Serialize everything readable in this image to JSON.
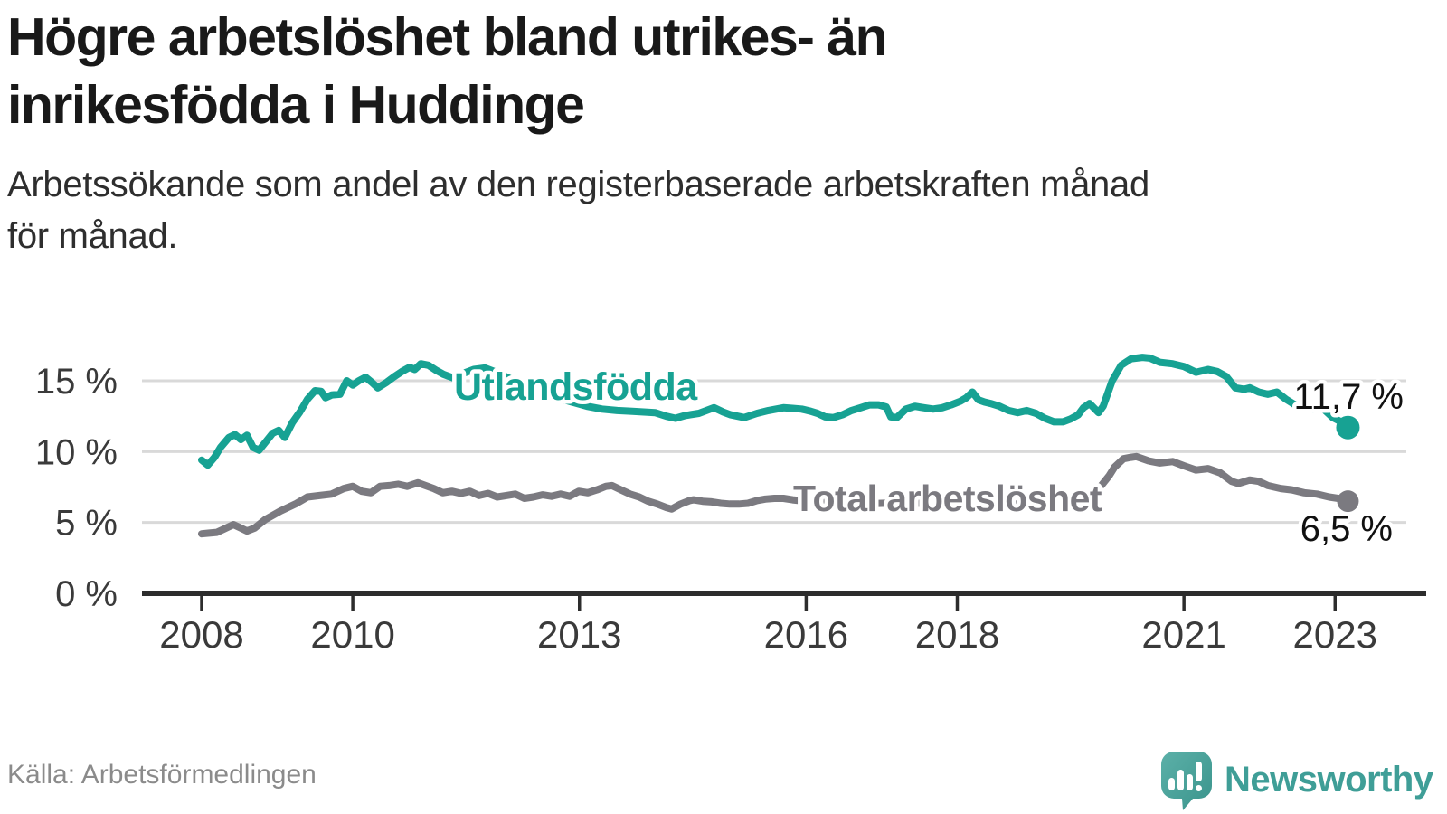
{
  "header": {
    "title_lines": [
      "Högre arbetslöshet bland utrikes- än",
      "inrikesfödda i Huddinge"
    ],
    "subtitle_lines": [
      "Arbetssökande som andel av den registerbaserade arbetskraften månad",
      "för månad."
    ]
  },
  "footer": {
    "source": "Källa: Arbetsförmedlingen",
    "brand": "Newsworthy"
  },
  "colors": {
    "accent_teal": "#17a293",
    "series_gray": "#7b7a80",
    "axis": "#2d2d2d",
    "grid": "#d9d9d9",
    "text": "#191919",
    "muted": "#8b8b8b",
    "brand_teal": "#3f9e97"
  },
  "chart_data": {
    "type": "line",
    "unit": "%",
    "grid": "horizontal",
    "x_axis": {
      "tick_years": [
        2008,
        2010,
        2013,
        2016,
        2018,
        2021,
        2023
      ],
      "tick_labels": [
        "2008",
        "2010",
        "2013",
        "2016",
        "2018",
        "2021",
        "2023"
      ],
      "range_years": [
        2008,
        2023.6
      ]
    },
    "y_axis": {
      "tick_values": [
        0,
        5,
        10,
        15
      ],
      "tick_labels": [
        "0 %",
        "5 %",
        "10 %",
        "15 %"
      ],
      "ylim": [
        0,
        17.7
      ]
    },
    "series": [
      {
        "name": "Utlandsfödda",
        "color": "#17a293",
        "end_label": "11,7 %",
        "end_value": 11.7,
        "points": [
          [
            2008.0,
            9.4
          ],
          [
            2008.08,
            9.05
          ],
          [
            2008.17,
            9.6
          ],
          [
            2008.25,
            10.3
          ],
          [
            2008.36,
            11.0
          ],
          [
            2008.44,
            11.2
          ],
          [
            2008.52,
            10.85
          ],
          [
            2008.6,
            11.15
          ],
          [
            2008.68,
            10.3
          ],
          [
            2008.76,
            10.1
          ],
          [
            2008.85,
            10.7
          ],
          [
            2008.94,
            11.3
          ],
          [
            2009.02,
            11.5
          ],
          [
            2009.1,
            11.0
          ],
          [
            2009.2,
            12.05
          ],
          [
            2009.3,
            12.8
          ],
          [
            2009.4,
            13.7
          ],
          [
            2009.5,
            14.3
          ],
          [
            2009.58,
            14.25
          ],
          [
            2009.64,
            13.8
          ],
          [
            2009.72,
            14.0
          ],
          [
            2009.83,
            14.05
          ],
          [
            2009.92,
            15.0
          ],
          [
            2010.0,
            14.7
          ],
          [
            2010.08,
            15.0
          ],
          [
            2010.17,
            15.25
          ],
          [
            2010.25,
            14.9
          ],
          [
            2010.33,
            14.5
          ],
          [
            2010.45,
            14.9
          ],
          [
            2010.55,
            15.3
          ],
          [
            2010.65,
            15.65
          ],
          [
            2010.75,
            15.95
          ],
          [
            2010.82,
            15.8
          ],
          [
            2010.9,
            16.2
          ],
          [
            2011.0,
            16.1
          ],
          [
            2011.1,
            15.75
          ],
          [
            2011.2,
            15.45
          ],
          [
            2011.33,
            15.2
          ],
          [
            2011.45,
            15.5
          ],
          [
            2011.6,
            15.8
          ],
          [
            2011.75,
            15.9
          ],
          [
            2011.9,
            15.6
          ],
          [
            2012.1,
            15.1
          ],
          [
            2012.3,
            14.6
          ],
          [
            2012.5,
            14.2
          ],
          [
            2012.7,
            13.8
          ],
          [
            2012.9,
            13.5
          ],
          [
            2013.1,
            13.2
          ],
          [
            2013.3,
            13.0
          ],
          [
            2013.5,
            12.9
          ],
          [
            2013.7,
            12.85
          ],
          [
            2013.85,
            12.8
          ],
          [
            2014.0,
            12.75
          ],
          [
            2014.15,
            12.5
          ],
          [
            2014.27,
            12.35
          ],
          [
            2014.4,
            12.55
          ],
          [
            2014.58,
            12.7
          ],
          [
            2014.78,
            13.1
          ],
          [
            2014.9,
            12.8
          ],
          [
            2015.0,
            12.6
          ],
          [
            2015.18,
            12.4
          ],
          [
            2015.35,
            12.7
          ],
          [
            2015.5,
            12.9
          ],
          [
            2015.7,
            13.1
          ],
          [
            2015.82,
            13.05
          ],
          [
            2015.94,
            13.0
          ],
          [
            2016.06,
            12.85
          ],
          [
            2016.15,
            12.7
          ],
          [
            2016.25,
            12.45
          ],
          [
            2016.36,
            12.4
          ],
          [
            2016.48,
            12.6
          ],
          [
            2016.6,
            12.9
          ],
          [
            2016.72,
            13.1
          ],
          [
            2016.84,
            13.3
          ],
          [
            2016.96,
            13.3
          ],
          [
            2017.06,
            13.15
          ],
          [
            2017.12,
            12.45
          ],
          [
            2017.2,
            12.4
          ],
          [
            2017.32,
            13.0
          ],
          [
            2017.44,
            13.2
          ],
          [
            2017.56,
            13.1
          ],
          [
            2017.68,
            13.0
          ],
          [
            2017.8,
            13.1
          ],
          [
            2017.92,
            13.3
          ],
          [
            2018.04,
            13.55
          ],
          [
            2018.12,
            13.8
          ],
          [
            2018.2,
            14.2
          ],
          [
            2018.28,
            13.65
          ],
          [
            2018.36,
            13.5
          ],
          [
            2018.44,
            13.4
          ],
          [
            2018.56,
            13.2
          ],
          [
            2018.68,
            12.9
          ],
          [
            2018.8,
            12.75
          ],
          [
            2018.92,
            12.9
          ],
          [
            2019.04,
            12.7
          ],
          [
            2019.16,
            12.35
          ],
          [
            2019.28,
            12.1
          ],
          [
            2019.4,
            12.1
          ],
          [
            2019.5,
            12.3
          ],
          [
            2019.6,
            12.6
          ],
          [
            2019.67,
            13.1
          ],
          [
            2019.75,
            13.4
          ],
          [
            2019.87,
            12.75
          ],
          [
            2019.93,
            13.2
          ],
          [
            2020.05,
            15.0
          ],
          [
            2020.17,
            16.1
          ],
          [
            2020.3,
            16.55
          ],
          [
            2020.45,
            16.65
          ],
          [
            2020.55,
            16.6
          ],
          [
            2020.68,
            16.3
          ],
          [
            2020.85,
            16.2
          ],
          [
            2021.0,
            16.0
          ],
          [
            2021.16,
            15.6
          ],
          [
            2021.32,
            15.8
          ],
          [
            2021.44,
            15.65
          ],
          [
            2021.56,
            15.3
          ],
          [
            2021.68,
            14.5
          ],
          [
            2021.8,
            14.4
          ],
          [
            2021.87,
            14.5
          ],
          [
            2021.99,
            14.2
          ],
          [
            2022.11,
            14.05
          ],
          [
            2022.23,
            14.2
          ],
          [
            2022.35,
            13.7
          ],
          [
            2022.47,
            13.3
          ],
          [
            2022.59,
            13.1
          ],
          [
            2022.71,
            13.0
          ],
          [
            2022.83,
            13.1
          ],
          [
            2022.97,
            12.4
          ],
          [
            2023.08,
            12.1
          ],
          [
            2023.17,
            11.7
          ]
        ]
      },
      {
        "name": "Total arbetslöshet",
        "color": "#7b7a80",
        "end_label": "6,5 %",
        "end_value": 6.5,
        "points": [
          [
            2008.0,
            4.2
          ],
          [
            2008.1,
            4.25
          ],
          [
            2008.2,
            4.3
          ],
          [
            2008.3,
            4.55
          ],
          [
            2008.42,
            4.85
          ],
          [
            2008.52,
            4.6
          ],
          [
            2008.6,
            4.4
          ],
          [
            2008.7,
            4.6
          ],
          [
            2008.84,
            5.2
          ],
          [
            2009.04,
            5.8
          ],
          [
            2009.24,
            6.3
          ],
          [
            2009.4,
            6.8
          ],
          [
            2009.56,
            6.9
          ],
          [
            2009.72,
            7.0
          ],
          [
            2009.88,
            7.4
          ],
          [
            2010.0,
            7.55
          ],
          [
            2010.12,
            7.2
          ],
          [
            2010.24,
            7.1
          ],
          [
            2010.36,
            7.55
          ],
          [
            2010.48,
            7.6
          ],
          [
            2010.6,
            7.7
          ],
          [
            2010.72,
            7.55
          ],
          [
            2010.86,
            7.8
          ],
          [
            2011.07,
            7.4
          ],
          [
            2011.19,
            7.1
          ],
          [
            2011.31,
            7.2
          ],
          [
            2011.43,
            7.05
          ],
          [
            2011.55,
            7.2
          ],
          [
            2011.67,
            6.9
          ],
          [
            2011.79,
            7.05
          ],
          [
            2011.91,
            6.8
          ],
          [
            2012.03,
            6.9
          ],
          [
            2012.15,
            7.0
          ],
          [
            2012.27,
            6.7
          ],
          [
            2012.39,
            6.8
          ],
          [
            2012.51,
            6.95
          ],
          [
            2012.63,
            6.85
          ],
          [
            2012.75,
            7.0
          ],
          [
            2012.87,
            6.85
          ],
          [
            2012.99,
            7.2
          ],
          [
            2013.11,
            7.1
          ],
          [
            2013.23,
            7.3
          ],
          [
            2013.35,
            7.55
          ],
          [
            2013.43,
            7.6
          ],
          [
            2013.55,
            7.3
          ],
          [
            2013.67,
            7.0
          ],
          [
            2013.79,
            6.8
          ],
          [
            2013.91,
            6.5
          ],
          [
            2014.03,
            6.3
          ],
          [
            2014.15,
            6.05
          ],
          [
            2014.22,
            5.95
          ],
          [
            2014.34,
            6.3
          ],
          [
            2014.46,
            6.55
          ],
          [
            2014.51,
            6.6
          ],
          [
            2014.63,
            6.5
          ],
          [
            2014.75,
            6.45
          ],
          [
            2014.87,
            6.35
          ],
          [
            2014.99,
            6.3
          ],
          [
            2015.11,
            6.3
          ],
          [
            2015.23,
            6.35
          ],
          [
            2015.35,
            6.55
          ],
          [
            2015.46,
            6.65
          ],
          [
            2015.58,
            6.7
          ],
          [
            2015.7,
            6.7
          ],
          [
            2015.82,
            6.6
          ],
          [
            2016.0,
            6.5
          ],
          [
            2016.25,
            6.45
          ],
          [
            2016.5,
            6.35
          ],
          [
            2016.75,
            6.3
          ],
          [
            2017.0,
            6.35
          ],
          [
            2017.25,
            6.4
          ],
          [
            2017.5,
            6.35
          ],
          [
            2017.75,
            6.3
          ],
          [
            2018.0,
            6.35
          ],
          [
            2018.25,
            6.4
          ],
          [
            2018.5,
            6.35
          ],
          [
            2018.75,
            6.3
          ],
          [
            2019.0,
            6.3
          ],
          [
            2019.25,
            6.35
          ],
          [
            2019.45,
            6.4
          ],
          [
            2019.6,
            6.5
          ],
          [
            2019.72,
            6.7
          ],
          [
            2019.82,
            7.1
          ],
          [
            2019.92,
            7.7
          ],
          [
            2020.01,
            8.3
          ],
          [
            2020.08,
            8.9
          ],
          [
            2020.2,
            9.5
          ],
          [
            2020.3,
            9.6
          ],
          [
            2020.37,
            9.65
          ],
          [
            2020.53,
            9.35
          ],
          [
            2020.68,
            9.2
          ],
          [
            2020.85,
            9.3
          ],
          [
            2021.0,
            9.0
          ],
          [
            2021.16,
            8.7
          ],
          [
            2021.32,
            8.8
          ],
          [
            2021.48,
            8.5
          ],
          [
            2021.63,
            7.9
          ],
          [
            2021.72,
            7.75
          ],
          [
            2021.87,
            8.0
          ],
          [
            2021.99,
            7.9
          ],
          [
            2022.11,
            7.6
          ],
          [
            2022.28,
            7.4
          ],
          [
            2022.43,
            7.3
          ],
          [
            2022.59,
            7.1
          ],
          [
            2022.76,
            7.0
          ],
          [
            2022.92,
            6.8
          ],
          [
            2023.04,
            6.7
          ],
          [
            2023.17,
            6.5
          ]
        ]
      }
    ]
  }
}
